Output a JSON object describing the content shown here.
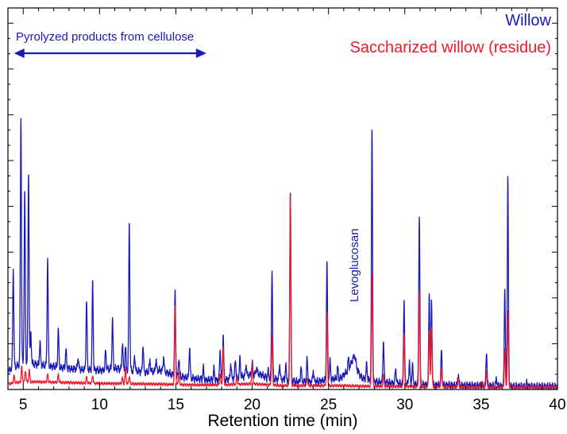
{
  "chart_data": {
    "type": "line",
    "title": "",
    "xlabel": "Retention time (min)",
    "ylabel": "",
    "xlim": [
      4,
      40
    ],
    "ylim": [
      0,
      100
    ],
    "x_ticks": [
      5,
      10,
      15,
      20,
      25,
      30,
      35,
      40
    ],
    "y_ticks_labeled": false,
    "grid": false,
    "legend_position": "top-right",
    "series": [
      {
        "name": "Willow",
        "color": "#1a1ab8",
        "baseline": [
          [
            4.0,
            5
          ],
          [
            4.5,
            6
          ],
          [
            5.0,
            7
          ],
          [
            6.0,
            6.5
          ],
          [
            8.0,
            5.5
          ],
          [
            10.0,
            5
          ],
          [
            11.0,
            5.5
          ],
          [
            12.0,
            5
          ],
          [
            13.0,
            4.5
          ],
          [
            14.0,
            5
          ],
          [
            15.0,
            3.5
          ],
          [
            16.0,
            3
          ],
          [
            17.0,
            2.5
          ],
          [
            18.0,
            2.5
          ],
          [
            19.0,
            3
          ],
          [
            19.5,
            3.5
          ],
          [
            20.0,
            4
          ],
          [
            20.5,
            4
          ],
          [
            21.0,
            3
          ],
          [
            22.0,
            2.5
          ],
          [
            23.0,
            2
          ],
          [
            24.0,
            2
          ],
          [
            25.0,
            2.5
          ],
          [
            25.8,
            3
          ],
          [
            26.3,
            5
          ],
          [
            26.7,
            9
          ],
          [
            26.9,
            5
          ],
          [
            27.2,
            3
          ],
          [
            28.0,
            2
          ],
          [
            30.0,
            1.5
          ],
          [
            32.0,
            1.2
          ],
          [
            35.0,
            1
          ],
          [
            38.0,
            0.8
          ],
          [
            40.0,
            0.8
          ]
        ],
        "peaks": [
          [
            4.35,
            26
          ],
          [
            4.85,
            65
          ],
          [
            5.1,
            45
          ],
          [
            5.35,
            50
          ],
          [
            5.5,
            8
          ],
          [
            6.1,
            6
          ],
          [
            6.6,
            28
          ],
          [
            7.3,
            10
          ],
          [
            7.8,
            5
          ],
          [
            8.6,
            3
          ],
          [
            9.15,
            18
          ],
          [
            9.55,
            23
          ],
          [
            10.4,
            5
          ],
          [
            10.85,
            13
          ],
          [
            11.5,
            7
          ],
          [
            11.7,
            6
          ],
          [
            11.95,
            39
          ],
          [
            12.3,
            4
          ],
          [
            12.85,
            7
          ],
          [
            13.3,
            3
          ],
          [
            13.7,
            3
          ],
          [
            14.2,
            4
          ],
          [
            14.95,
            22
          ],
          [
            15.2,
            5
          ],
          [
            15.9,
            8
          ],
          [
            16.8,
            3
          ],
          [
            17.5,
            3
          ],
          [
            17.9,
            8
          ],
          [
            18.1,
            12
          ],
          [
            18.6,
            4
          ],
          [
            18.9,
            5
          ],
          [
            19.2,
            5
          ],
          [
            19.6,
            3
          ],
          [
            20.0,
            3
          ],
          [
            20.3,
            2
          ],
          [
            21.05,
            2
          ],
          [
            21.3,
            29
          ],
          [
            21.8,
            4
          ],
          [
            22.2,
            4
          ],
          [
            22.5,
            50
          ],
          [
            23.2,
            4
          ],
          [
            23.6,
            6
          ],
          [
            24.0,
            3
          ],
          [
            24.9,
            31
          ],
          [
            25.1,
            5
          ],
          [
            25.6,
            3
          ],
          [
            26.3,
            3
          ],
          [
            27.5,
            4
          ],
          [
            27.85,
            66
          ],
          [
            28.6,
            11
          ],
          [
            29.4,
            4
          ],
          [
            29.95,
            22
          ],
          [
            30.3,
            6
          ],
          [
            30.5,
            5
          ],
          [
            30.95,
            45
          ],
          [
            31.6,
            24
          ],
          [
            31.75,
            22
          ],
          [
            32.4,
            9
          ],
          [
            33.5,
            3
          ],
          [
            35.35,
            9
          ],
          [
            36.0,
            2
          ],
          [
            36.55,
            26
          ],
          [
            36.75,
            55
          ],
          [
            38.0,
            1
          ]
        ]
      },
      {
        "name": "Saccharized willow (residue)",
        "color": "#f0192a",
        "baseline": [
          [
            4.0,
            1.5
          ],
          [
            5.0,
            2
          ],
          [
            6.0,
            2
          ],
          [
            8.0,
            1.8
          ],
          [
            10.0,
            1.6
          ],
          [
            12.0,
            1.5
          ],
          [
            14.0,
            1.4
          ],
          [
            16.0,
            1.2
          ],
          [
            18.0,
            1.2
          ],
          [
            20.0,
            1.5
          ],
          [
            22.0,
            1
          ],
          [
            24.0,
            1
          ],
          [
            26.0,
            1
          ],
          [
            28.0,
            0.8
          ],
          [
            30.0,
            0.8
          ],
          [
            35.0,
            0.6
          ],
          [
            40.0,
            0.6
          ]
        ],
        "peaks": [
          [
            4.4,
            2
          ],
          [
            4.9,
            4
          ],
          [
            5.15,
            3
          ],
          [
            5.4,
            3
          ],
          [
            6.6,
            2
          ],
          [
            7.3,
            2
          ],
          [
            9.15,
            1.5
          ],
          [
            9.55,
            2
          ],
          [
            11.5,
            1.5
          ],
          [
            11.7,
            4
          ],
          [
            11.95,
            2
          ],
          [
            14.95,
            21
          ],
          [
            15.2,
            3
          ],
          [
            17.9,
            3
          ],
          [
            18.1,
            10
          ],
          [
            19.0,
            2
          ],
          [
            20.0,
            5
          ],
          [
            21.3,
            13
          ],
          [
            22.5,
            50
          ],
          [
            23.6,
            2
          ],
          [
            24.9,
            19
          ],
          [
            27.85,
            30
          ],
          [
            28.6,
            3
          ],
          [
            29.95,
            14
          ],
          [
            30.95,
            25
          ],
          [
            31.6,
            15
          ],
          [
            31.75,
            16
          ],
          [
            32.4,
            5
          ],
          [
            33.5,
            2
          ],
          [
            35.0,
            1.5
          ],
          [
            35.35,
            4
          ],
          [
            36.55,
            10
          ],
          [
            36.75,
            20
          ]
        ]
      }
    ],
    "annotations": [
      {
        "text": "Pyrolyzed products from cellulose",
        "type": "double-arrow",
        "x_range": [
          4.4,
          17.0
        ],
        "color": "#1a1ab8"
      },
      {
        "text": "Levoglucosan",
        "type": "vertical-label",
        "x": 26.7,
        "color": "#1a1ab8"
      }
    ]
  }
}
